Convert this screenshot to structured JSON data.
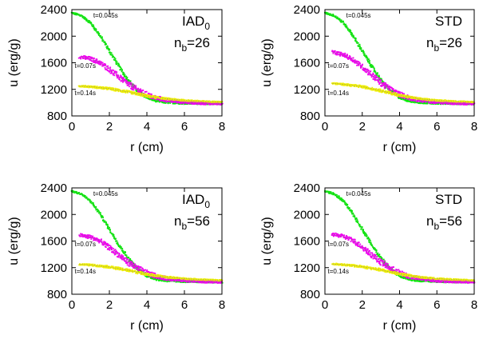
{
  "chart_data": [
    {
      "type": "scatter",
      "panel_id": "top-left",
      "method": "IAD",
      "method_subscript": "0",
      "nb_label": "n",
      "nb_subscript": "b",
      "nb_value": "=26",
      "xlabel": "r (cm)",
      "ylabel": "u (erg/g)",
      "xlim": [
        0,
        8
      ],
      "ylim": [
        800,
        2400
      ],
      "xticks": [
        "0",
        "2",
        "4",
        "6",
        "8"
      ],
      "yticks": [
        "800",
        "1200",
        "1600",
        "2000",
        "2400"
      ],
      "annotations": [
        "t=0.045s",
        "t=0.07s",
        "t=0.14s"
      ],
      "series": [
        {
          "name": "t=0.045s",
          "color": "#00ee00",
          "x": [
            0,
            0.5,
            1,
            1.5,
            2,
            2.5,
            3,
            3.5,
            4,
            4.5,
            5,
            6,
            7,
            8
          ],
          "y": [
            2350,
            2310,
            2200,
            2010,
            1780,
            1550,
            1340,
            1180,
            1080,
            1030,
            1005,
            990,
            985,
            980
          ]
        },
        {
          "name": "t=0.07s",
          "color": "#ee00ee",
          "x": [
            0.4,
            1,
            1.5,
            2,
            2.5,
            3,
            3.5,
            4,
            4.5,
            5,
            6,
            7,
            8
          ],
          "y": [
            1690,
            1660,
            1600,
            1500,
            1390,
            1280,
            1190,
            1120,
            1070,
            1040,
            1005,
            990,
            985
          ]
        },
        {
          "name": "t=0.14s",
          "color": "#eeee00",
          "x": [
            0.4,
            1,
            2,
            3,
            4,
            5,
            6,
            7,
            8
          ],
          "y": [
            1250,
            1240,
            1210,
            1160,
            1100,
            1060,
            1035,
            1020,
            1010
          ]
        }
      ]
    },
    {
      "type": "scatter",
      "panel_id": "top-right",
      "method": "STD",
      "method_subscript": "",
      "nb_label": "n",
      "nb_subscript": "b",
      "nb_value": "=26",
      "xlabel": "r (cm)",
      "ylabel": "u (erg/g)",
      "xlim": [
        0,
        8
      ],
      "ylim": [
        800,
        2400
      ],
      "xticks": [
        "0",
        "2",
        "4",
        "6",
        "8"
      ],
      "yticks": [
        "800",
        "1200",
        "1600",
        "2000",
        "2400"
      ],
      "annotations": [
        "t=0.045s",
        "t=0.07s",
        "t=0.14s"
      ],
      "series": [
        {
          "name": "t=0.045s",
          "color": "#00ee00",
          "x": [
            0,
            0.5,
            1,
            1.5,
            2,
            2.5,
            3,
            3.5,
            4,
            4.5,
            5,
            6,
            7,
            8
          ],
          "y": [
            2350,
            2310,
            2200,
            2010,
            1780,
            1550,
            1340,
            1180,
            1080,
            1030,
            1005,
            990,
            985,
            980
          ]
        },
        {
          "name": "t=0.07s",
          "color": "#ee00ee",
          "x": [
            0.4,
            1,
            1.5,
            2,
            2.5,
            3,
            3.5,
            4,
            4.5,
            5,
            6,
            7,
            8
          ],
          "y": [
            1760,
            1720,
            1650,
            1540,
            1420,
            1300,
            1200,
            1125,
            1075,
            1040,
            1005,
            990,
            985
          ]
        },
        {
          "name": "t=0.14s",
          "color": "#eeee00",
          "x": [
            0.4,
            1,
            2,
            3,
            4,
            5,
            6,
            7,
            8
          ],
          "y": [
            1290,
            1275,
            1240,
            1180,
            1110,
            1060,
            1035,
            1020,
            1010
          ]
        }
      ]
    },
    {
      "type": "scatter",
      "panel_id": "bottom-left",
      "method": "IAD",
      "method_subscript": "0",
      "nb_label": "n",
      "nb_subscript": "b",
      "nb_value": "=56",
      "xlabel": "r (cm)",
      "ylabel": "u (erg/g)",
      "xlim": [
        0,
        8
      ],
      "ylim": [
        800,
        2400
      ],
      "xticks": [
        "0",
        "2",
        "4",
        "6",
        "8"
      ],
      "yticks": [
        "800",
        "1200",
        "1600",
        "2000",
        "2400"
      ],
      "annotations": [
        "t=0.045s",
        "t=0.07s",
        "t=0.14s"
      ],
      "series": [
        {
          "name": "t=0.045s",
          "color": "#00ee00",
          "x": [
            0,
            0.5,
            1,
            1.5,
            2,
            2.5,
            3,
            3.5,
            4,
            4.5,
            5,
            6,
            7,
            8
          ],
          "y": [
            2350,
            2310,
            2200,
            2010,
            1780,
            1550,
            1340,
            1180,
            1080,
            1030,
            1005,
            990,
            985,
            980
          ]
        },
        {
          "name": "t=0.07s",
          "color": "#ee00ee",
          "x": [
            0.4,
            1,
            1.5,
            2,
            2.5,
            3,
            3.5,
            4,
            4.5,
            5,
            6,
            7,
            8
          ],
          "y": [
            1690,
            1660,
            1600,
            1500,
            1390,
            1280,
            1190,
            1120,
            1070,
            1040,
            1005,
            990,
            985
          ]
        },
        {
          "name": "t=0.14s",
          "color": "#eeee00",
          "x": [
            0.4,
            1,
            2,
            3,
            4,
            5,
            6,
            7,
            8
          ],
          "y": [
            1250,
            1240,
            1210,
            1160,
            1100,
            1060,
            1035,
            1020,
            1010
          ]
        }
      ]
    },
    {
      "type": "scatter",
      "panel_id": "bottom-right",
      "method": "STD",
      "method_subscript": "",
      "nb_label": "n",
      "nb_subscript": "b",
      "nb_value": "=56",
      "xlabel": "r (cm)",
      "ylabel": "u (erg/g)",
      "xlim": [
        0,
        8
      ],
      "ylim": [
        800,
        2400
      ],
      "xticks": [
        "0",
        "2",
        "4",
        "6",
        "8"
      ],
      "yticks": [
        "800",
        "1200",
        "1600",
        "2000",
        "2400"
      ],
      "annotations": [
        "t=0.045s",
        "t=0.07s",
        "t=0.14s"
      ],
      "series": [
        {
          "name": "t=0.045s",
          "color": "#00ee00",
          "x": [
            0,
            0.5,
            1,
            1.5,
            2,
            2.5,
            3,
            3.5,
            4,
            4.5,
            5,
            6,
            7,
            8
          ],
          "y": [
            2350,
            2310,
            2200,
            2010,
            1780,
            1550,
            1340,
            1180,
            1080,
            1030,
            1005,
            990,
            985,
            980
          ]
        },
        {
          "name": "t=0.07s",
          "color": "#ee00ee",
          "x": [
            0.4,
            1,
            1.5,
            2,
            2.5,
            3,
            3.5,
            4,
            4.5,
            5,
            6,
            7,
            8
          ],
          "y": [
            1700,
            1670,
            1610,
            1510,
            1395,
            1285,
            1190,
            1120,
            1070,
            1040,
            1005,
            990,
            985
          ]
        },
        {
          "name": "t=0.14s",
          "color": "#eeee00",
          "x": [
            0.4,
            1,
            2,
            3,
            4,
            5,
            6,
            7,
            8
          ],
          "y": [
            1255,
            1245,
            1215,
            1165,
            1105,
            1060,
            1035,
            1020,
            1010
          ]
        }
      ]
    }
  ]
}
